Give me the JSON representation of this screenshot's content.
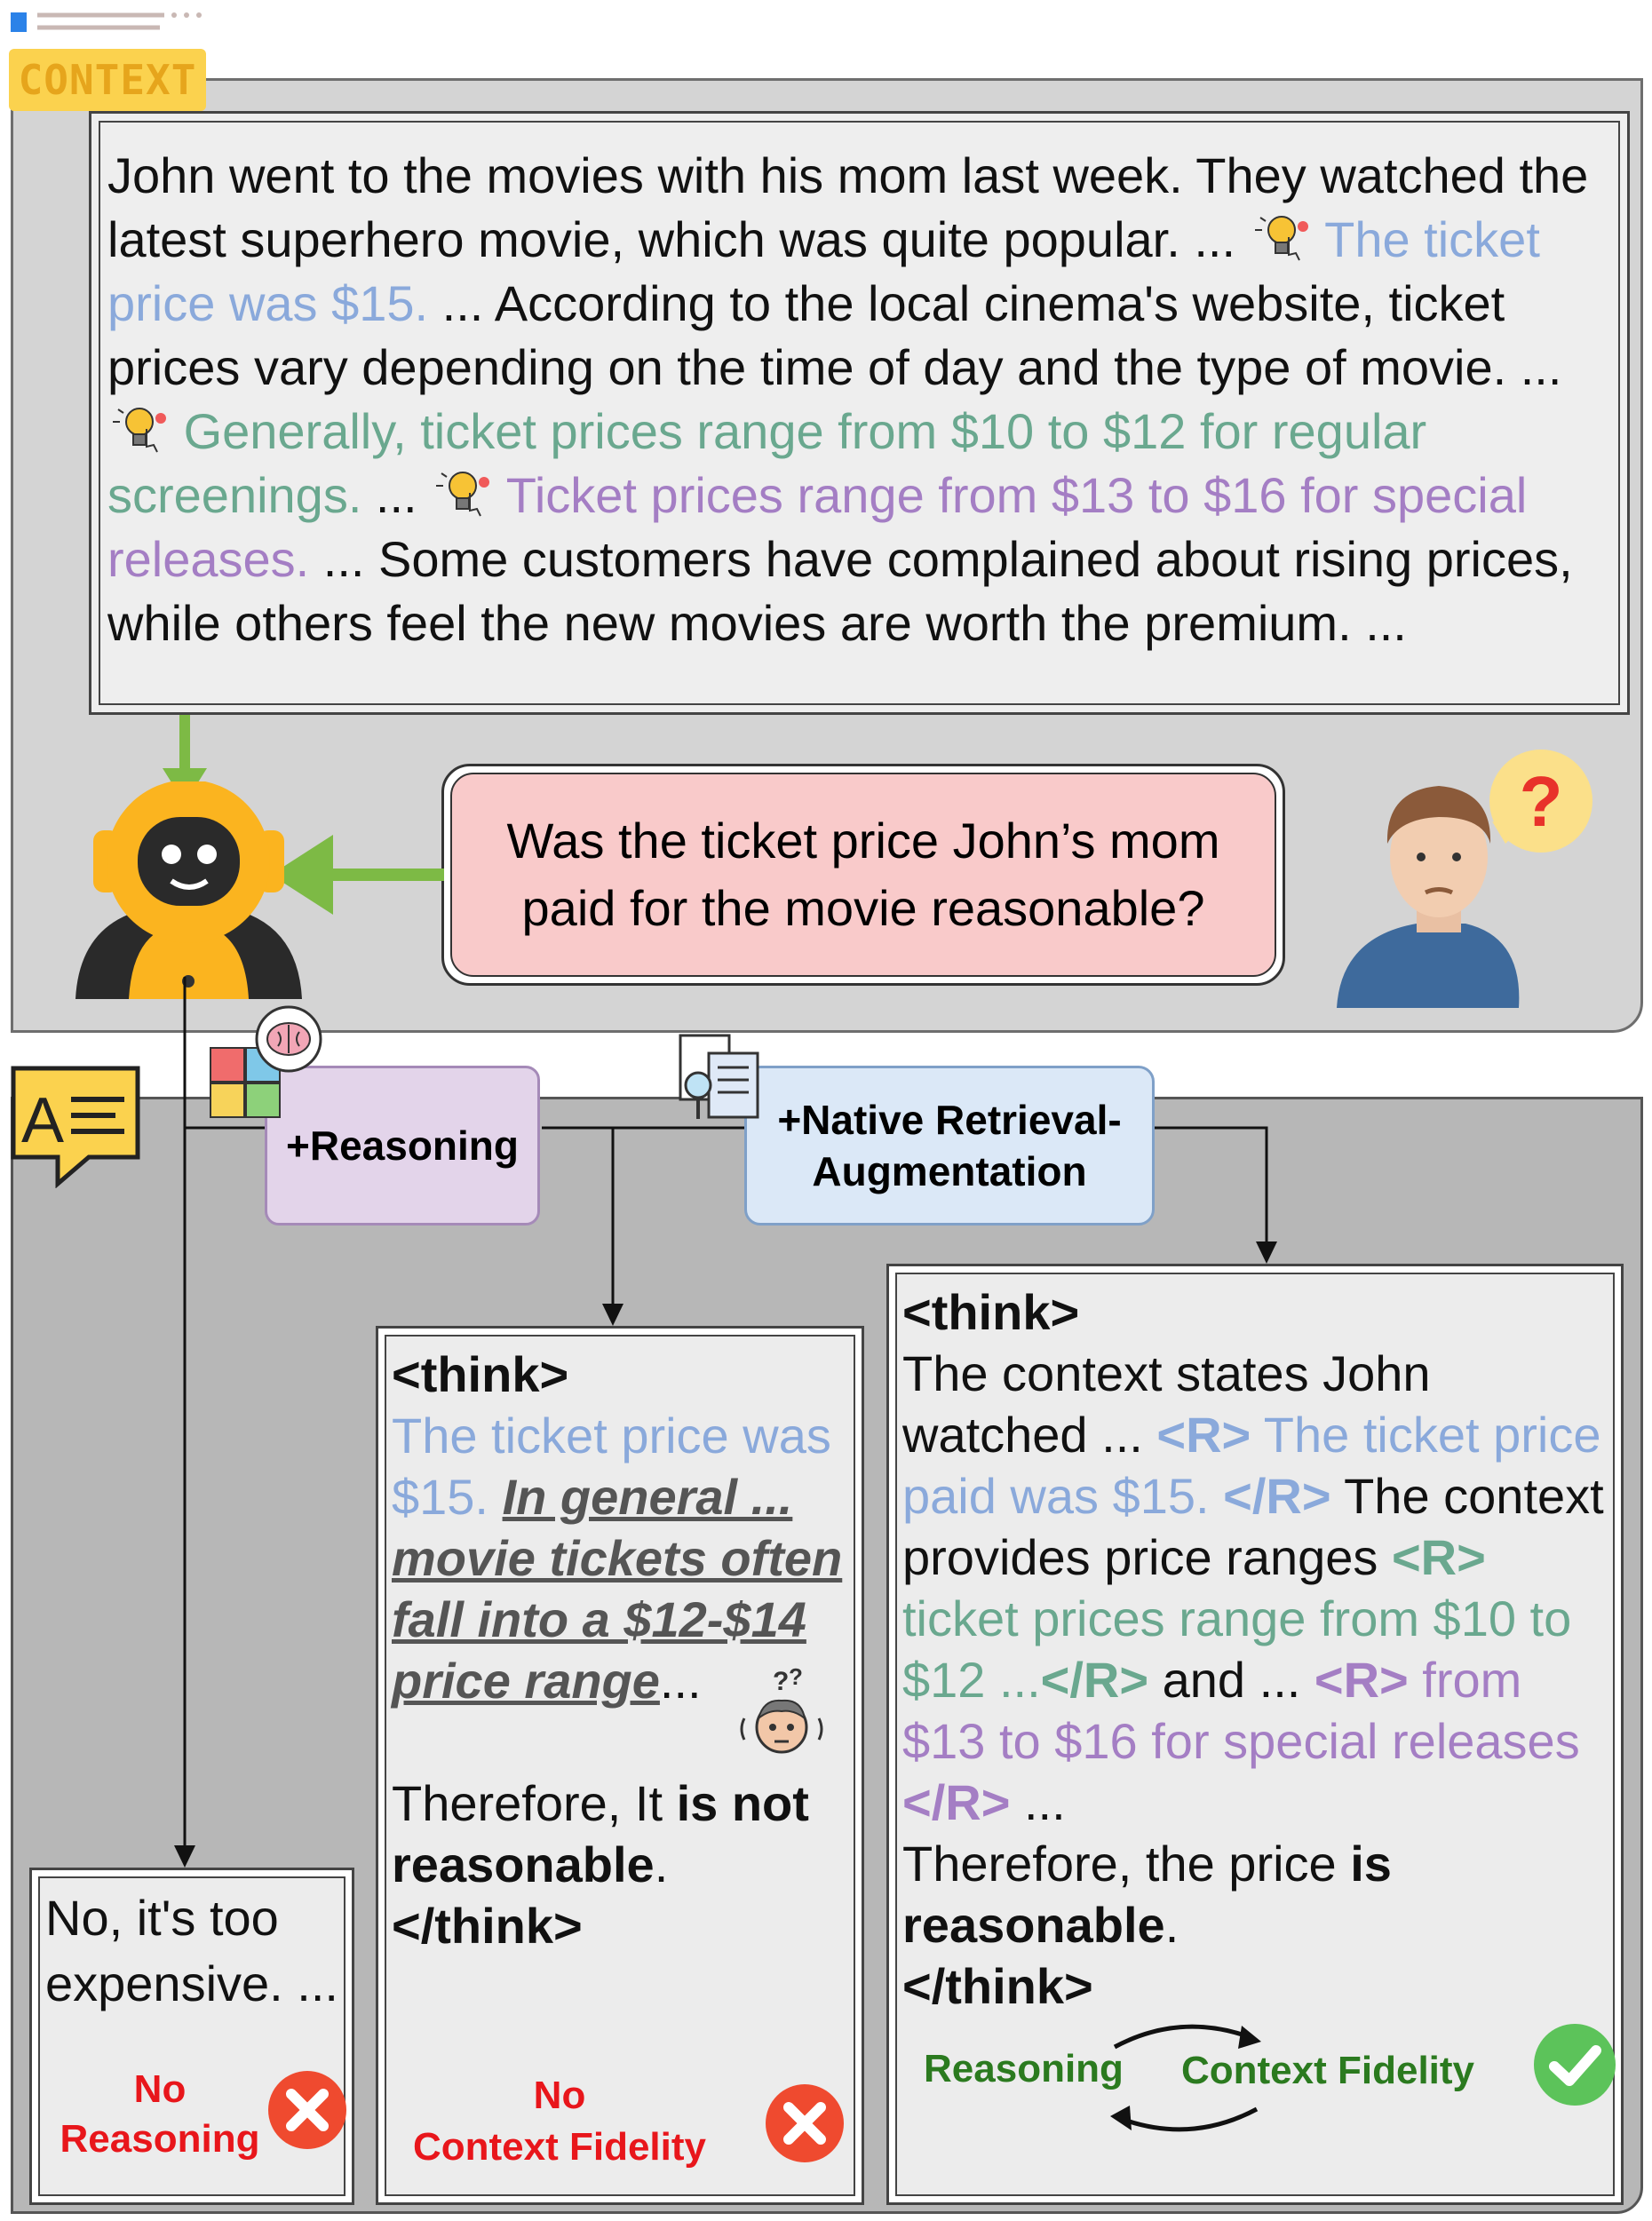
{
  "context_tag": "CONTEXT",
  "context": {
    "s1": "John went to the movies with his mom last week. They watched the latest superhero movie, which was quite popular. ... ",
    "s2_blue": "The ticket price was $15.",
    "s3": " ... According to the local cinema's website, ticket prices vary depending on the time of day and the type of movie. ... ",
    "s4_green": "Generally, ticket prices range from $10 to $12 for regular screenings.",
    "s5": " ... ",
    "s6_purple": "Ticket prices range from $13 to $16 for special releases.",
    "s7": " ... Some customers have complained about rising prices, while others feel the new movies are worth the premium. ..."
  },
  "question": "Was the ticket price John’s mom paid for the movie reasonable?",
  "question_mark": "?",
  "labels": {
    "reasoning": "+Reasoning",
    "rag": "+Native Retrieval-Augmentation"
  },
  "answers": {
    "no_reasoning": {
      "text": "No, it's too expensive. ...",
      "verdict_line1": "No",
      "verdict_line2": "Reasoning"
    },
    "no_fidelity": {
      "think_open": "<think>",
      "blue": "The ticket price was $15.",
      "hallucination": "In general ... movie tickets often fall into a $12-$14 price range",
      "ellipsis": "...",
      "therefore": "Therefore, It ",
      "conclusion_bold": "is not reasonable",
      "period": ".",
      "think_close": "</think>",
      "verdict_line1": "No",
      "verdict_line2": "Context Fidelity"
    },
    "fidelity": {
      "think_open": "<think>",
      "t1": "The context states John watched ... ",
      "r_open": "<R>",
      "r_close": "</R>",
      "r1": " The ticket price paid was $15. ",
      "t2": " The context provides price ranges ",
      "r2": " ticket prices range from $10 to $12 ...",
      "t3": " and ... ",
      "r3": " from $13 to $16 for special releases ",
      "t4": " ...",
      "therefore": "Therefore, the price ",
      "conclusion_bold": "is reasonable",
      "period": ".",
      "think_close": "</think>",
      "verdict_left": "Reasoning",
      "verdict_right": "Context Fidelity"
    }
  },
  "colors": {
    "retrieved_blue": "#8aa9db",
    "retrieved_green": "#6aa88f",
    "retrieved_purple": "#a47ec4",
    "error_red": "#e8161b",
    "success_green": "#2b7a1f",
    "arrow_green": "#7dba45"
  }
}
